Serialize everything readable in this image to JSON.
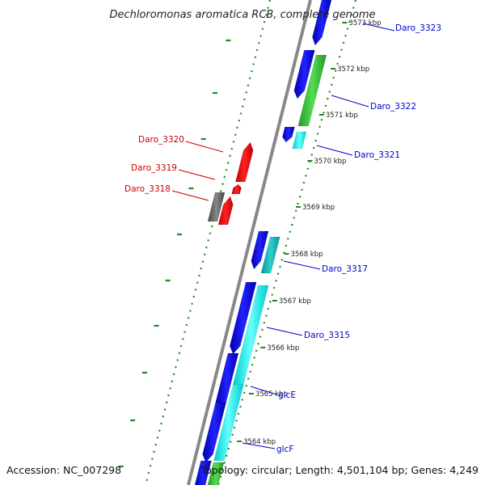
{
  "title": "Dechloromonas aromatica RCB, complete genome",
  "accession": "Accession: NC_007298",
  "topology": "Topology: circular; Length: 4,501,104 bp; Genes: 4,249",
  "colors": {
    "blue": "#0000ee",
    "green": "#33cc33",
    "cyan": "#00eeee",
    "teal": "#00bbbb",
    "red": "#ee0000",
    "gray": "#666666",
    "dots": "#228822",
    "backbone": "#888888",
    "label_blue": "#0000cc",
    "label_red": "#cc0000"
  },
  "kbp_labels": [
    "3573 kbp",
    "3572 kbp",
    "3571 kbp",
    "3570 kbp",
    "3569 kbp",
    "3568 kbp",
    "3567 kbp",
    "3566 kbp",
    "3565 kbp",
    "3564 kbp"
  ],
  "genes": {
    "right": [
      "Daro_3323",
      "Daro_3322",
      "Daro_3321",
      "Daro_3317",
      "Daro_3315",
      "glcE",
      "glcF"
    ],
    "left": [
      "Daro_3320",
      "Daro_3319",
      "Daro_3318"
    ]
  }
}
